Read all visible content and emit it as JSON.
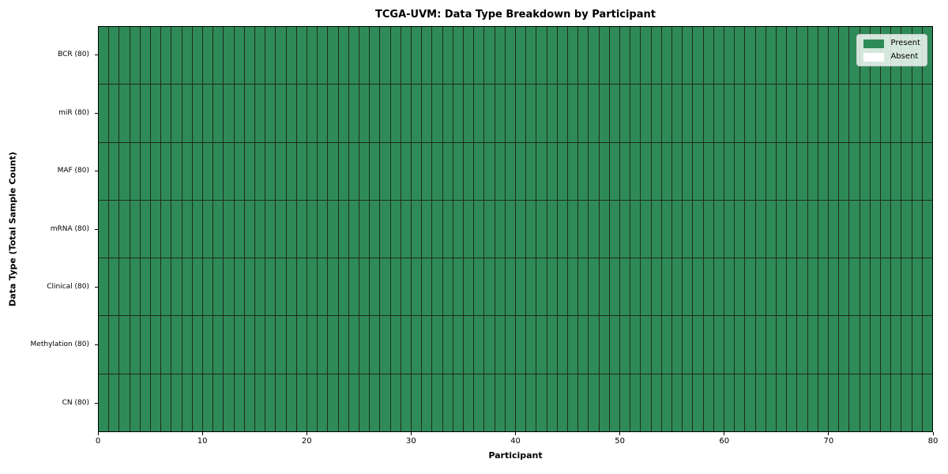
{
  "chart_data": {
    "type": "heatmap",
    "title": "TCGA-UVM: Data Type Breakdown by Participant",
    "xlabel": "Participant",
    "ylabel": "Data Type (Total Sample Count)",
    "n_participants": 80,
    "xlim": [
      0,
      80
    ],
    "x_ticks": [
      0,
      10,
      20,
      30,
      40,
      50,
      60,
      70,
      80
    ],
    "rows": [
      {
        "label": "BCR (80)",
        "data_type": "BCR",
        "total_samples": 80,
        "present_count": 80
      },
      {
        "label": "miR (80)",
        "data_type": "miR",
        "total_samples": 80,
        "present_count": 80
      },
      {
        "label": "MAF (80)",
        "data_type": "MAF",
        "total_samples": 80,
        "present_count": 80
      },
      {
        "label": "mRNA (80)",
        "data_type": "mRNA",
        "total_samples": 80,
        "present_count": 80
      },
      {
        "label": "Clinical (80)",
        "data_type": "Clinical",
        "total_samples": 80,
        "present_count": 80
      },
      {
        "label": "Methylation (80)",
        "data_type": "Methylation",
        "total_samples": 80,
        "present_count": 80
      },
      {
        "label": "CN (80)",
        "data_type": "CN",
        "total_samples": 80,
        "present_count": 80
      }
    ],
    "legend": {
      "position": "upper right",
      "items": [
        {
          "label": "Present",
          "color": "#2e8b57"
        },
        {
          "label": "Absent",
          "color": "#ffffff"
        }
      ]
    },
    "colors": {
      "present": "#2e8b57",
      "absent": "#ffffff",
      "cell_edge": "#202a20",
      "spine": "#000000"
    },
    "grid": false
  }
}
